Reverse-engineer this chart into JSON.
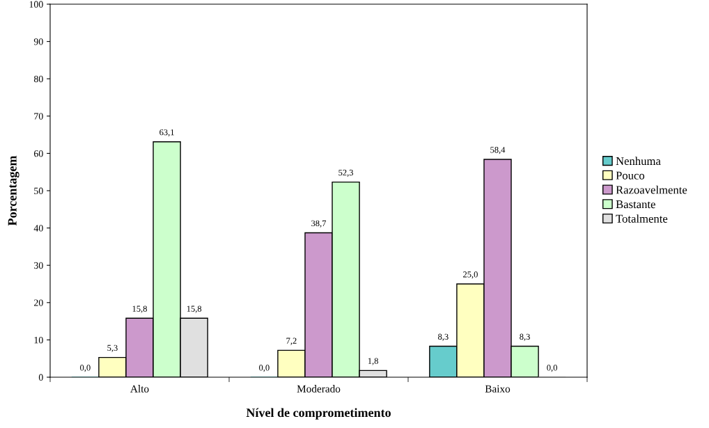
{
  "chart_data": {
    "type": "bar",
    "xlabel": "Nível de comprometimento",
    "ylabel": "Porcentagem",
    "categories": [
      "Alto",
      "Moderado",
      "Baixo"
    ],
    "series": [
      {
        "name": "Nenhuma",
        "color": "#66cccc",
        "values": [
          0.0,
          0.0,
          8.3
        ],
        "value_labels": [
          "0,0",
          "0,0",
          "8,3"
        ]
      },
      {
        "name": "Pouco",
        "color": "#ffffc0",
        "values": [
          5.3,
          7.2,
          25.0
        ],
        "value_labels": [
          "5,3",
          "7,2",
          "25,0"
        ]
      },
      {
        "name": "Razoavelmente",
        "color": "#cc99cc",
        "values": [
          15.8,
          38.7,
          58.4
        ],
        "value_labels": [
          "15,8",
          "38,7",
          "58,4"
        ]
      },
      {
        "name": "Bastante",
        "color": "#ccffcc",
        "values": [
          63.1,
          52.3,
          8.3
        ],
        "value_labels": [
          "63,1",
          "52,3",
          "8,3"
        ]
      },
      {
        "name": "Totalmente",
        "color": "#e0e0e0",
        "values": [
          15.8,
          1.8,
          0.0
        ],
        "value_labels": [
          "15,8",
          "1,8",
          "0,0"
        ]
      }
    ],
    "ylim": [
      0,
      100
    ],
    "yticks": [
      0,
      10,
      20,
      30,
      40,
      50,
      60,
      70,
      80,
      90,
      100
    ],
    "grid": false,
    "legend": "right"
  }
}
